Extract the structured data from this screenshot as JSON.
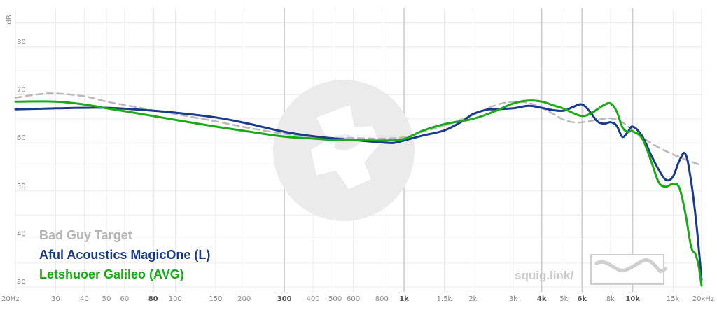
{
  "chart_data": {
    "type": "line",
    "xscale": "log",
    "xlim": [
      20,
      20000
    ],
    "ylim": [
      29,
      88
    ],
    "ylabel": "dB",
    "grid": true,
    "y_ticks": [
      {
        "v": 30,
        "label": "30"
      },
      {
        "v": 40,
        "label": "40"
      },
      {
        "v": 50,
        "label": "50"
      },
      {
        "v": 60,
        "label": "60"
      },
      {
        "v": 70,
        "label": "70"
      },
      {
        "v": 80,
        "label": "80"
      }
    ],
    "x_ticks": [
      {
        "f": 20,
        "label": "20Hz",
        "bold": false,
        "major": false
      },
      {
        "f": 30,
        "label": "30",
        "bold": false,
        "major": false
      },
      {
        "f": 40,
        "label": "40",
        "bold": false,
        "major": false
      },
      {
        "f": 50,
        "label": "50",
        "bold": false,
        "major": false
      },
      {
        "f": 60,
        "label": "60",
        "bold": false,
        "major": false
      },
      {
        "f": 80,
        "label": "80",
        "bold": true,
        "major": true
      },
      {
        "f": 100,
        "label": "100",
        "bold": false,
        "major": false
      },
      {
        "f": 150,
        "label": "150",
        "bold": false,
        "major": false
      },
      {
        "f": 200,
        "label": "200",
        "bold": false,
        "major": false
      },
      {
        "f": 300,
        "label": "300",
        "bold": true,
        "major": true
      },
      {
        "f": 400,
        "label": "400",
        "bold": false,
        "major": false
      },
      {
        "f": 500,
        "label": "500",
        "bold": false,
        "major": false
      },
      {
        "f": 600,
        "label": "600",
        "bold": false,
        "major": false
      },
      {
        "f": 800,
        "label": "800",
        "bold": false,
        "major": false
      },
      {
        "f": 1000,
        "label": "1k",
        "bold": true,
        "major": true
      },
      {
        "f": 1500,
        "label": "1.5k",
        "bold": false,
        "major": false
      },
      {
        "f": 2000,
        "label": "2k",
        "bold": false,
        "major": false
      },
      {
        "f": 3000,
        "label": "3k",
        "bold": false,
        "major": false
      },
      {
        "f": 4000,
        "label": "4k",
        "bold": true,
        "major": true
      },
      {
        "f": 5000,
        "label": "5k",
        "bold": false,
        "major": false
      },
      {
        "f": 6000,
        "label": "6k",
        "bold": true,
        "major": true
      },
      {
        "f": 8000,
        "label": "8k",
        "bold": false,
        "major": false
      },
      {
        "f": 10000,
        "label": "10k",
        "bold": true,
        "major": true
      },
      {
        "f": 15000,
        "label": "15k",
        "bold": false,
        "major": false
      },
      {
        "f": 20000,
        "label": "20kHz",
        "bold": false,
        "major": false
      }
    ],
    "series": [
      {
        "name": "Bad Guy Target",
        "color": "#b9b9b9",
        "dashed": true,
        "points": [
          [
            20,
            69.4
          ],
          [
            25,
            70.1
          ],
          [
            30,
            70.3
          ],
          [
            40,
            69.7
          ],
          [
            50,
            68.6
          ],
          [
            60,
            67.9
          ],
          [
            80,
            66.8
          ],
          [
            100,
            66.0
          ],
          [
            150,
            64.5
          ],
          [
            200,
            63.3
          ],
          [
            300,
            61.9
          ],
          [
            400,
            61.3
          ],
          [
            500,
            61.0
          ],
          [
            600,
            61.0
          ],
          [
            800,
            60.9
          ],
          [
            1000,
            61.2
          ],
          [
            1200,
            62.3
          ],
          [
            1500,
            63.6
          ],
          [
            2000,
            65.8
          ],
          [
            2500,
            67.8
          ],
          [
            3000,
            68.6
          ],
          [
            3500,
            68.3
          ],
          [
            4000,
            67.3
          ],
          [
            4500,
            66.0
          ],
          [
            5000,
            64.8
          ],
          [
            5500,
            64.3
          ],
          [
            6000,
            64.3
          ],
          [
            7000,
            64.8
          ],
          [
            8000,
            65.1
          ],
          [
            9000,
            64.3
          ],
          [
            10000,
            62.6
          ],
          [
            12000,
            60.0
          ],
          [
            15000,
            57.6
          ],
          [
            20000,
            55.3
          ]
        ]
      },
      {
        "name": "Aful Acoustics MagicOne (L)",
        "color": "#1a3a8c",
        "dashed": false,
        "points": [
          [
            20,
            67.0
          ],
          [
            30,
            67.2
          ],
          [
            50,
            67.3
          ],
          [
            80,
            66.7
          ],
          [
            100,
            66.3
          ],
          [
            150,
            65.3
          ],
          [
            200,
            64.2
          ],
          [
            300,
            62.3
          ],
          [
            400,
            61.4
          ],
          [
            500,
            60.9
          ],
          [
            600,
            60.6
          ],
          [
            800,
            60.1
          ],
          [
            900,
            60.0
          ],
          [
            1000,
            60.5
          ],
          [
            1200,
            61.5
          ],
          [
            1500,
            62.6
          ],
          [
            1800,
            64.5
          ],
          [
            2000,
            66.0
          ],
          [
            2300,
            66.9
          ],
          [
            2500,
            67.0
          ],
          [
            3000,
            67.2
          ],
          [
            3500,
            67.7
          ],
          [
            4000,
            67.3
          ],
          [
            4500,
            66.8
          ],
          [
            5000,
            66.7
          ],
          [
            5500,
            67.5
          ],
          [
            6000,
            68.0
          ],
          [
            6500,
            66.5
          ],
          [
            7000,
            64.5
          ],
          [
            7500,
            64.0
          ],
          [
            8000,
            64.3
          ],
          [
            8500,
            63.6
          ],
          [
            9000,
            61.3
          ],
          [
            9500,
            62.2
          ],
          [
            10000,
            63.4
          ],
          [
            11000,
            61.4
          ],
          [
            12000,
            57.6
          ],
          [
            13000,
            54.4
          ],
          [
            14000,
            52.3
          ],
          [
            15000,
            53.0
          ],
          [
            16000,
            56.3
          ],
          [
            17000,
            57.7
          ],
          [
            18000,
            52.0
          ],
          [
            19000,
            43.0
          ],
          [
            20000,
            31.5
          ]
        ]
      },
      {
        "name": "Letshuoer Galileo (AVG)",
        "color": "#1aaa18",
        "dashed": false,
        "points": [
          [
            20,
            68.6
          ],
          [
            30,
            68.6
          ],
          [
            40,
            68.0
          ],
          [
            50,
            67.2
          ],
          [
            60,
            66.6
          ],
          [
            80,
            65.6
          ],
          [
            100,
            64.8
          ],
          [
            150,
            63.4
          ],
          [
            200,
            62.5
          ],
          [
            300,
            61.3
          ],
          [
            400,
            60.9
          ],
          [
            500,
            60.6
          ],
          [
            600,
            60.6
          ],
          [
            800,
            60.5
          ],
          [
            1000,
            60.8
          ],
          [
            1200,
            62.5
          ],
          [
            1500,
            63.9
          ],
          [
            2000,
            65.0
          ],
          [
            2500,
            66.6
          ],
          [
            3000,
            68.2
          ],
          [
            3500,
            68.8
          ],
          [
            4000,
            68.6
          ],
          [
            4500,
            67.8
          ],
          [
            5000,
            67.1
          ],
          [
            5500,
            66.2
          ],
          [
            6000,
            65.6
          ],
          [
            6500,
            66.0
          ],
          [
            7000,
            67.0
          ],
          [
            7500,
            67.9
          ],
          [
            8000,
            68.2
          ],
          [
            8500,
            66.6
          ],
          [
            9000,
            63.3
          ],
          [
            9500,
            62.3
          ],
          [
            10000,
            62.4
          ],
          [
            11000,
            60.9
          ],
          [
            12000,
            56.4
          ],
          [
            13000,
            51.8
          ],
          [
            14000,
            50.9
          ],
          [
            15000,
            51.5
          ],
          [
            16000,
            50.6
          ],
          [
            17000,
            45.3
          ],
          [
            18000,
            38.4
          ],
          [
            18800,
            36.9
          ],
          [
            19400,
            34.5
          ],
          [
            20000,
            30.3
          ]
        ]
      }
    ]
  },
  "legend": {
    "target": "Bad Guy Target",
    "series1": "Aful Acoustics MagicOne (L)",
    "series2": "Letshuoer Galileo (AVG)"
  },
  "watermark": {
    "text": "squig.link/"
  },
  "colors": {
    "target": "#b9b9b9",
    "series1": "#1a3a8c",
    "series2": "#1aaa18",
    "grid": "#ececec",
    "grid_major": "#cccccc"
  }
}
